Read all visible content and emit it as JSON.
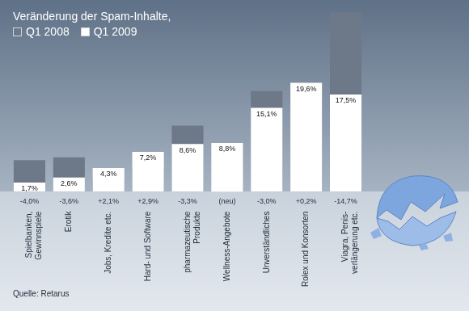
{
  "chart_data": {
    "type": "bar",
    "title": "Veränderung der Spam-Inhalte,",
    "categories": [
      "Spielbanken,\nGewinnspiele",
      "Erotik",
      "Jobs, Kredite etc.",
      "Hard- und Software",
      "pharmazeutische\nProdukte",
      "Wellness-Angebote",
      "Unverständliches",
      "Rolex und Konsorten",
      "Viagra, Penis-\nverlängerung etc."
    ],
    "series": [
      {
        "name": "Q1 2008",
        "color": "#6d7988",
        "values": [
          5.7,
          6.2,
          2.2,
          4.3,
          11.9,
          null,
          18.1,
          19.4,
          32.2
        ]
      },
      {
        "name": "Q1 2009",
        "color": "#ffffff",
        "values": [
          1.7,
          2.6,
          4.3,
          7.2,
          8.6,
          8.8,
          15.1,
          19.6,
          17.5
        ],
        "value_labels": [
          "1,7%",
          "2,6%",
          "4,3%",
          "7,2%",
          "8,6%",
          "8,8%",
          "15,1%",
          "19,6%",
          "17,5%"
        ],
        "data_labels": true
      }
    ],
    "change_labels": [
      "-4,0%",
      "-3,6%",
      "+2,1%",
      "+2,9%",
      "-3,3%",
      "(neu)",
      "-3,0%",
      "+0,2%",
      "-14,7%"
    ],
    "source": "Quelle: Retarus",
    "ylim": [
      0,
      33
    ],
    "grid": false,
    "legend": "top-left",
    "tick_labels": "x"
  }
}
